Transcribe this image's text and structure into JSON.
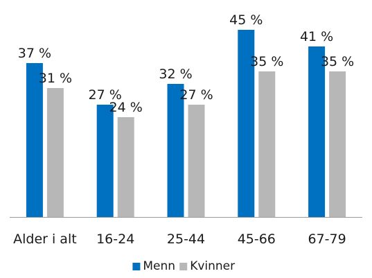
{
  "chart_data": {
    "type": "bar",
    "categories": [
      "Alder i alt",
      "16-24",
      "25-44",
      "45-66",
      "67-79"
    ],
    "series": [
      {
        "name": "Menn",
        "values": [
          37,
          27,
          32,
          45,
          41
        ],
        "color": "#0070C0"
      },
      {
        "name": "Kvinner",
        "values": [
          31,
          24,
          27,
          35,
          35
        ],
        "color": "#B7B7B7"
      }
    ],
    "value_suffix": " %",
    "ylim": [
      0,
      50
    ],
    "grid": false,
    "legend": "bottom-center"
  }
}
